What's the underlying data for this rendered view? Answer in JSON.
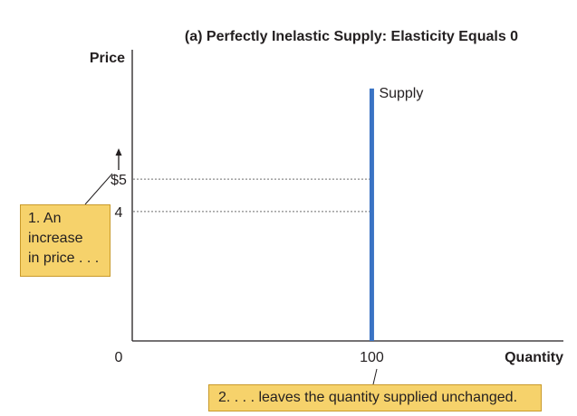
{
  "chart_data": {
    "type": "line",
    "title": "(a) Perfectly Inelastic Supply: Elasticity Equals 0",
    "xlabel": "Quantity",
    "ylabel": "Price",
    "origin_label": "0",
    "x_ticks": [
      {
        "value": 100,
        "label": "100"
      }
    ],
    "y_ticks": [
      {
        "value": 5,
        "label": "$5"
      },
      {
        "value": 4,
        "label": "4"
      }
    ],
    "xlim": [
      0,
      180
    ],
    "ylim": [
      0,
      9
    ],
    "grid": false,
    "reference_lines": [
      {
        "y": 5,
        "x_to": 100
      },
      {
        "y": 4,
        "x_to": 100
      }
    ],
    "series": [
      {
        "name": "Supply",
        "color": "#3a73c4",
        "x": [
          100,
          100
        ],
        "y": [
          0,
          7.8
        ]
      }
    ],
    "annotations": {
      "price_increase": {
        "lines": [
          "1. An",
          "increase",
          "in price . . ."
        ]
      },
      "quantity_unchanged": {
        "text": "2. . . . leaves the quantity supplied unchanged."
      }
    },
    "callout_color": "#f6d26b"
  }
}
